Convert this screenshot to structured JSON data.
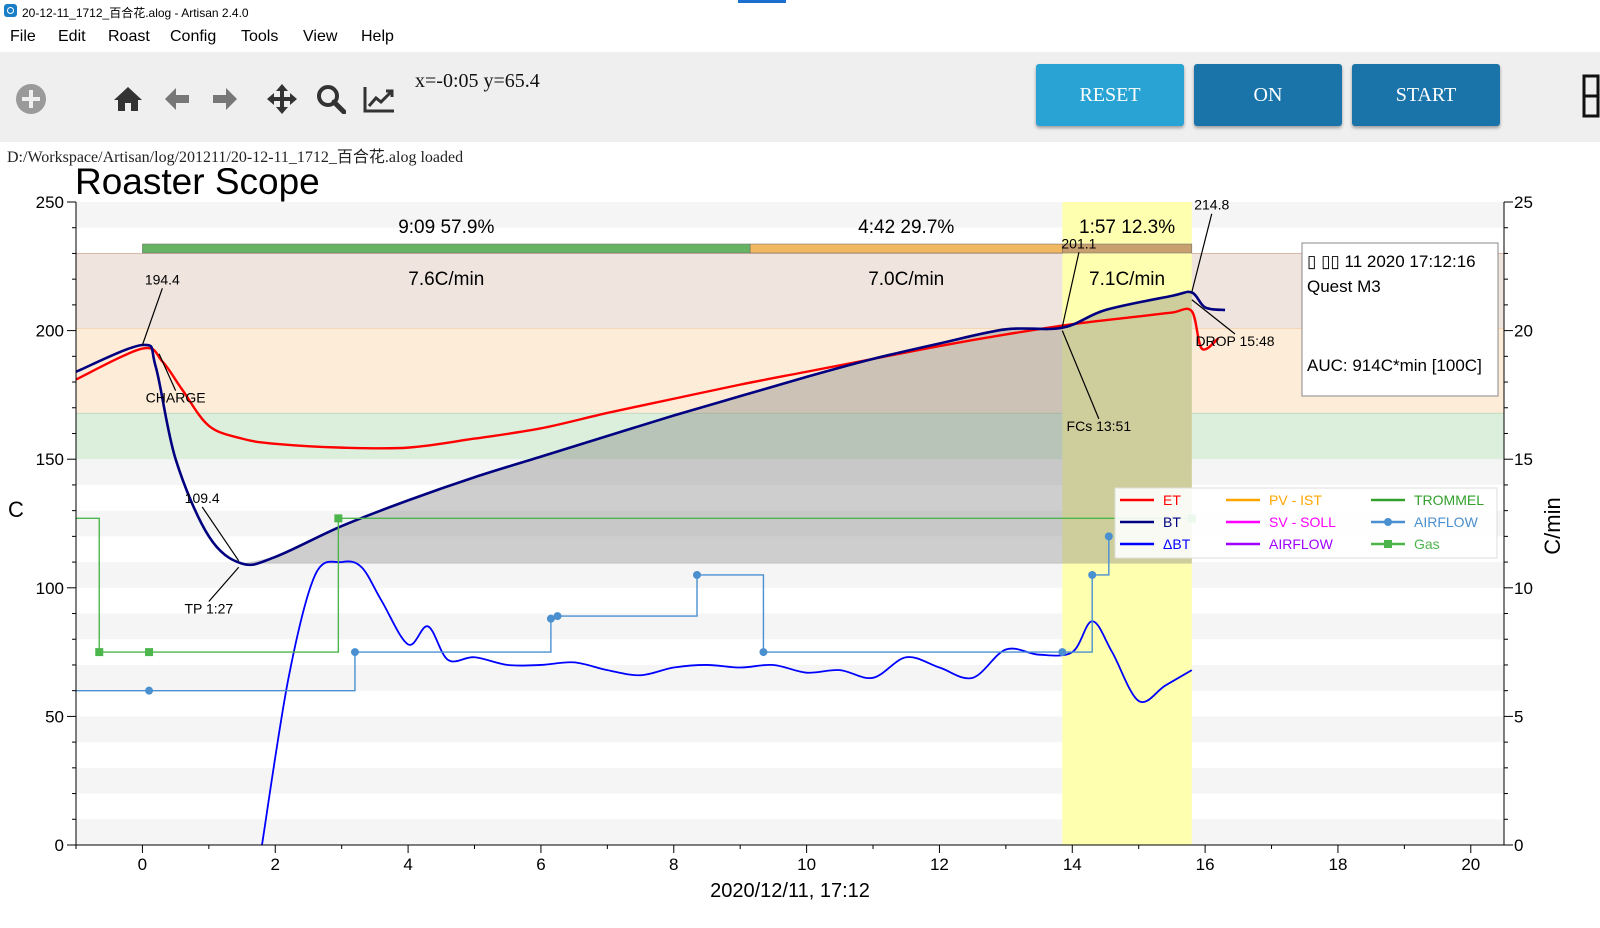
{
  "window": {
    "title": "20-12-11_1712_百合花.alog - Artisan 2.4.0"
  },
  "menu": {
    "items": [
      "File",
      "Edit",
      "Roast",
      "Config",
      "Tools",
      "View",
      "Help"
    ]
  },
  "toolbar": {
    "icons": [
      "add-icon",
      "home-icon",
      "back-arrow-icon",
      "forward-arrow-icon",
      "pan-icon",
      "zoom-icon",
      "chart-line-icon"
    ],
    "coords": "x=-0:05 y=65.4",
    "reset_label": "RESET",
    "on_label": "ON",
    "start_label": "START"
  },
  "status": {
    "text": "D:/Workspace/Artisan/log/201211/20-12-11_1712_百合花.alog  loaded"
  },
  "colors": {
    "button_reset": "#29a3d4",
    "button_on": "#1a74aa",
    "button_start": "#1a74aa",
    "et": "#ff0000",
    "bt": "#000080",
    "delta_bt": "#0000ff",
    "airflow": "#4a90d0",
    "gas": "#4cb64c",
    "phase_drying": "#66b366",
    "phase_maillard": "#f0b860",
    "phase_development": "#c8a070",
    "development_band": "#ffffb0"
  },
  "chart_data": {
    "type": "line",
    "title": "Roaster Scope",
    "xlabel": "2020/12/11, 17:12",
    "ylabel": "C",
    "y2label": "C/min",
    "xlim": [
      -1,
      20.5
    ],
    "ylim": [
      0,
      250
    ],
    "y2lim": [
      0,
      25
    ],
    "x_ticks": [
      0,
      2,
      4,
      6,
      8,
      10,
      12,
      14,
      16,
      18,
      20
    ],
    "y_ticks": [
      0,
      50,
      100,
      150,
      200,
      250
    ],
    "y2_ticks": [
      0,
      5,
      10,
      15,
      20,
      25
    ],
    "phases": [
      {
        "time": "9:09",
        "pct": "57.9%",
        "ror": "7.6C/min",
        "start": 0,
        "end": 9.15
      },
      {
        "time": "4:42",
        "pct": "29.7%",
        "ror": "7.0C/min",
        "start": 9.15,
        "end": 13.85
      },
      {
        "time": "1:57",
        "pct": "12.3%",
        "ror": "7.1C/min",
        "start": 13.85,
        "end": 15.8
      }
    ],
    "temp_bands": [
      [
        150,
        168
      ],
      [
        168,
        201
      ],
      [
        201,
        230
      ]
    ],
    "development_window": [
      13.85,
      15.8
    ],
    "series": [
      {
        "name": "ET",
        "axis": "left",
        "x": [
          -1,
          0,
          0.3,
          0.6,
          1.0,
          1.5,
          2.0,
          3.0,
          4.0,
          5.0,
          6.0,
          7.0,
          8.0,
          9.0,
          10.0,
          11.0,
          12.0,
          13.0,
          14.0,
          15.0,
          15.5,
          15.8,
          15.95,
          16.2
        ],
        "y": [
          181,
          193,
          188,
          177,
          163,
          158,
          156,
          154.5,
          154.5,
          158,
          162,
          168,
          173.5,
          179,
          184,
          189,
          194,
          198.5,
          202.5,
          205.5,
          207,
          207.5,
          193,
          197
        ]
      },
      {
        "name": "BT",
        "axis": "left",
        "x": [
          -1,
          0,
          0.2,
          0.5,
          1.0,
          1.5,
          2.0,
          3.0,
          4.0,
          5.0,
          6.0,
          7.0,
          8.0,
          9.0,
          10.0,
          11.0,
          12.0,
          13.0,
          13.85,
          14.5,
          15.5,
          15.8,
          16.0,
          16.3
        ],
        "y": [
          184,
          194.4,
          186,
          150,
          120,
          109.4,
          112,
          124,
          134,
          143,
          151,
          159,
          167,
          174.5,
          182,
          189,
          195,
          200.5,
          201.1,
          208,
          213.5,
          214.8,
          209,
          208
        ]
      },
      {
        "name": "ΔBT",
        "axis": "right",
        "x": [
          1.8,
          2.2,
          2.6,
          3.0,
          3.3,
          3.6,
          4.0,
          4.3,
          4.6,
          5.0,
          5.5,
          6.0,
          6.5,
          7.0,
          7.5,
          8.0,
          8.5,
          9.0,
          9.5,
          10.0,
          10.5,
          11.0,
          11.5,
          12.0,
          12.5,
          13.0,
          13.5,
          14.0,
          14.3,
          14.6,
          15.0,
          15.4,
          15.8
        ],
        "y": [
          0,
          6.5,
          10.5,
          11,
          10.8,
          9.5,
          7.8,
          8.5,
          7.2,
          7.3,
          7.0,
          7.0,
          7.1,
          6.8,
          6.6,
          6.9,
          7.0,
          6.9,
          7.0,
          6.7,
          6.8,
          6.5,
          7.3,
          6.9,
          6.5,
          7.6,
          7.4,
          7.5,
          8.7,
          7.5,
          5.6,
          6.2,
          6.8
        ]
      },
      {
        "name": "AIRFLOW",
        "axis": "right",
        "style": "step",
        "x": [
          -1,
          0.1,
          3.2,
          6.15,
          6.25,
          8.35,
          9.35,
          13.85,
          14.3,
          14.55
        ],
        "y": [
          6,
          6,
          7.5,
          8.8,
          8.9,
          10.5,
          7.5,
          7.5,
          10.5,
          12
        ]
      },
      {
        "name": "Gas",
        "axis": "right",
        "style": "step",
        "x": [
          -1,
          -0.65,
          0.1,
          2.95,
          15.8
        ],
        "y": [
          12.7,
          7.5,
          7.5,
          12.7,
          12.7
        ]
      }
    ],
    "legend": {
      "placement": "right-middle",
      "entries": [
        {
          "name": "ET",
          "color": "#ff0000",
          "marker": "line"
        },
        {
          "name": "BT",
          "color": "#000080",
          "marker": "line"
        },
        {
          "name": "ΔBT",
          "color": "#0000ff",
          "marker": "line"
        },
        {
          "name": "PV - IST",
          "color": "#ffa500",
          "marker": "line"
        },
        {
          "name": "SV - SOLL",
          "color": "#ff00ff",
          "marker": "line"
        },
        {
          "name": "AIRFLOW",
          "color": "#9f00ff",
          "marker": "line"
        },
        {
          "name": "TROMMEL",
          "color": "#33a02c",
          "marker": "line"
        },
        {
          "name": "AIRFLOW",
          "color": "#4a90d0",
          "marker": "circle"
        },
        {
          "name": "Gas",
          "color": "#4cb64c",
          "marker": "square"
        }
      ]
    },
    "annotations": [
      {
        "text": "194.4",
        "x": 0.0,
        "y": 194.4,
        "lx": 0.3,
        "ly": 218
      },
      {
        "text": "CHARGE",
        "x": 0.25,
        "y": 191,
        "lx": 0.5,
        "ly": 172
      },
      {
        "text": "109.4",
        "x": 1.45,
        "y": 110.5,
        "lx": 0.9,
        "ly": 133
      },
      {
        "text": "TP 1:27",
        "x": 1.45,
        "y": 108,
        "lx": 1.0,
        "ly": 90
      },
      {
        "text": "201.1",
        "x": 13.85,
        "y": 201.5,
        "lx": 14.1,
        "ly": 232
      },
      {
        "text": "FCs 13:51",
        "x": 13.85,
        "y": 200,
        "lx": 14.4,
        "ly": 161
      },
      {
        "text": "214.8",
        "x": 15.8,
        "y": 215,
        "lx": 16.1,
        "ly": 247
      },
      {
        "text": "DROP 15:48",
        "x": 15.8,
        "y": 212,
        "lx": 16.45,
        "ly": 194
      }
    ],
    "info_box": {
      "date": "▯ ▯▯ 11 2020 17:12:16",
      "machine": "Quest M3",
      "auc": "AUC: 914C*min [100C]"
    }
  }
}
